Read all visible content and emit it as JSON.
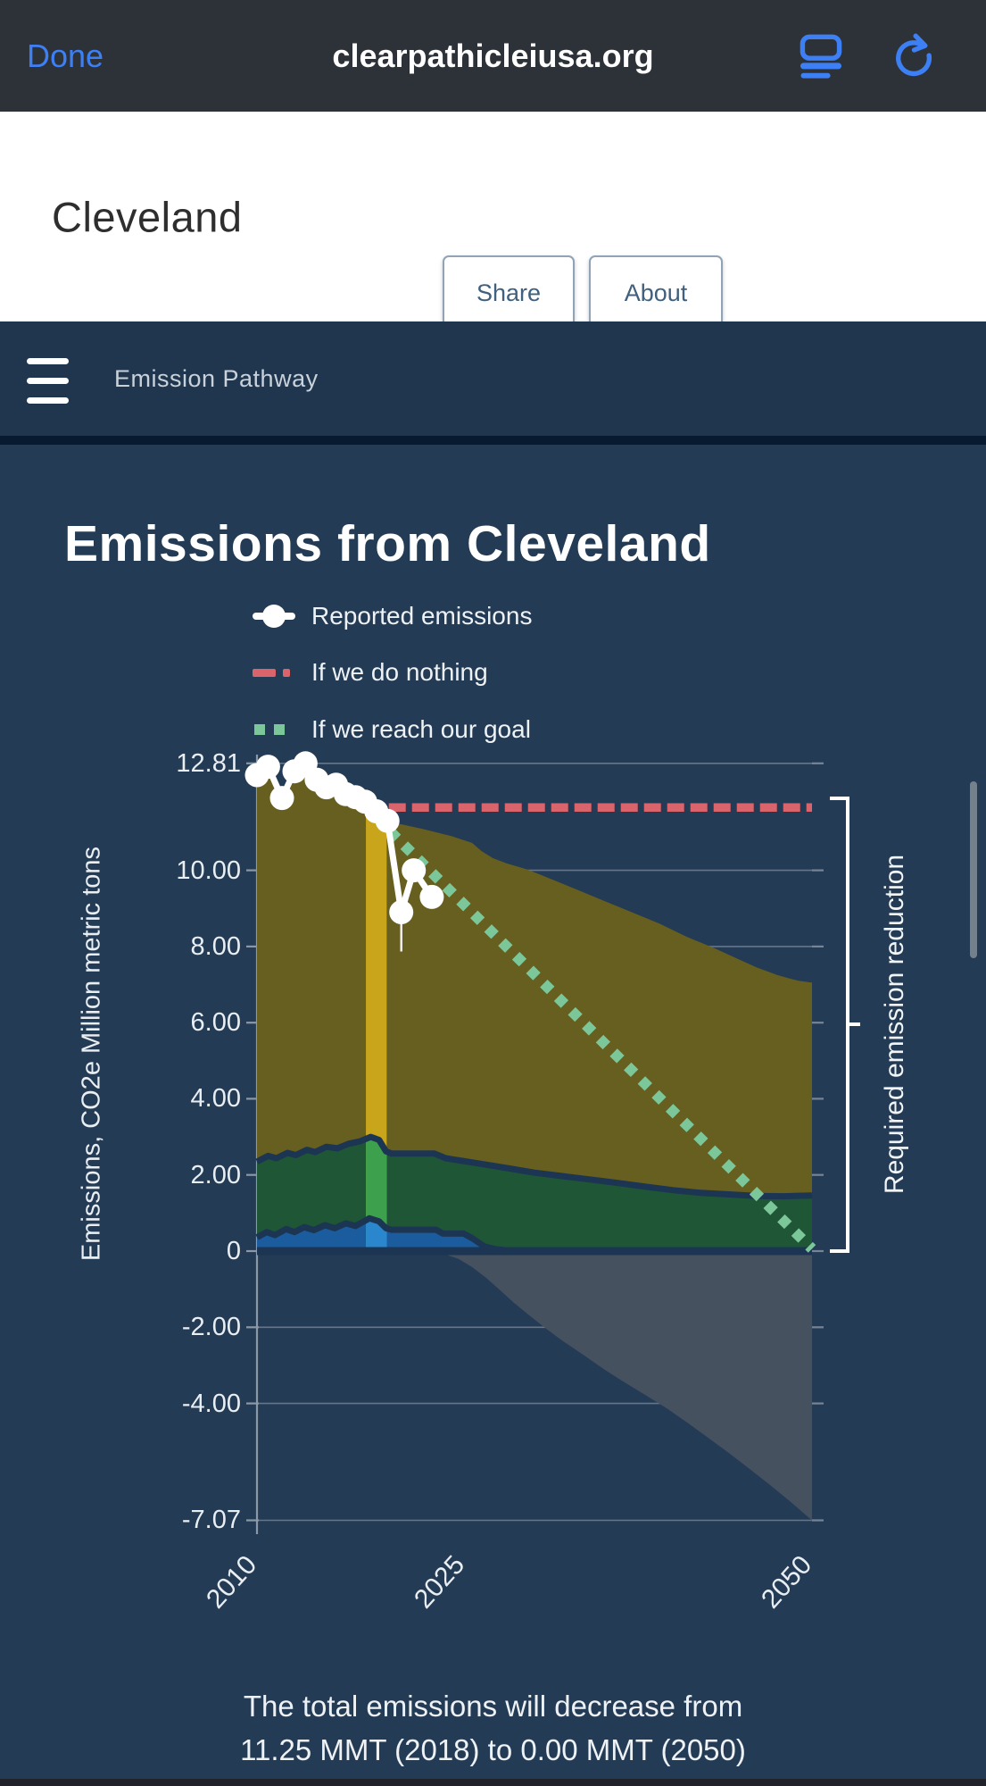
{
  "browser": {
    "done_label": "Done",
    "url": "clearpathicleiusa.org"
  },
  "page_header": {
    "city": "Cleveland",
    "share_label": "Share",
    "about_label": "About"
  },
  "navbar": {
    "menu_label": "Emission Pathway"
  },
  "chart_header": {
    "title": "Emissions from Cleveland"
  },
  "legend": {
    "items": [
      {
        "label": "Reported emissions",
        "marker": "line-dot",
        "color": "#ffffff"
      },
      {
        "label": "If we do nothing",
        "marker": "dash",
        "color": "#d9646c"
      },
      {
        "label": "If we reach our goal",
        "marker": "squares",
        "color": "#7cc79a"
      }
    ]
  },
  "annotations": {
    "bracket_label": "Required emission reduction"
  },
  "footer": {
    "line1": "The total emissions will decrease from",
    "line2": "11.25 MMT (2018) to 0.00 MMT (2050)"
  },
  "chart_data": {
    "type": "area",
    "title": "Emissions from Cleveland",
    "ylabel": "Emissions, CO2e Million metric tons",
    "xlabel": "",
    "xlim": [
      2010,
      2050
    ],
    "ylim": [
      -7.07,
      12.81
    ],
    "grid": true,
    "legend_position": "top",
    "y_ticks": [
      {
        "label": "12.81",
        "value": 12.81
      },
      {
        "label": "10.00",
        "value": 10
      },
      {
        "label": "8.00",
        "value": 8
      },
      {
        "label": "6.00",
        "value": 6
      },
      {
        "label": "4.00",
        "value": 4
      },
      {
        "label": "2.00",
        "value": 2
      },
      {
        "label": "0",
        "value": 0
      },
      {
        "label": "-2.00",
        "value": -2
      },
      {
        "label": "-4.00",
        "value": -4
      },
      {
        "label": "-7.07",
        "value": -7.07
      }
    ],
    "x_ticks": [
      {
        "label": "2010",
        "value": 2010
      },
      {
        "label": "2025",
        "value": 2025
      },
      {
        "label": "2050",
        "value": 2050
      }
    ],
    "highlight_band": {
      "from": 2017.85,
      "to": 2019.35
    },
    "colors": {
      "background": "#243b55",
      "wedge_upper": "#675f1f",
      "wedge_upper_highlight": "#c9a51c",
      "wedge_mid": "#1f5636",
      "wedge_mid_highlight": "#3da04c",
      "wedge_lower": "#1b5c9e",
      "wedge_lower_highlight": "#2b87cd",
      "negative_area": "#46515f",
      "boundary": "#1c3553",
      "do_nothing": "#d9646c",
      "goal": "#7cc79a",
      "reported": "#ffffff",
      "gridline": "#7b8a9c",
      "axis": "#8b98a6",
      "bracket": "#ffffff"
    },
    "series": [
      {
        "name": "Reported emissions",
        "type": "line-markers",
        "color": "#ffffff",
        "points": [
          [
            2010,
            12.5
          ],
          [
            2010.8,
            12.72
          ],
          [
            2011.8,
            11.9
          ],
          [
            2012.7,
            12.6
          ],
          [
            2013.5,
            12.81
          ],
          [
            2014.3,
            12.38
          ],
          [
            2015,
            12.18
          ],
          [
            2015.7,
            12.25
          ],
          [
            2016.4,
            12.0
          ],
          [
            2017.1,
            11.92
          ],
          [
            2017.8,
            11.8
          ],
          [
            2018.6,
            11.55
          ],
          [
            2019.4,
            11.3
          ],
          [
            2020.4,
            8.9
          ],
          [
            2021.3,
            10.0
          ],
          [
            2022.6,
            9.3
          ]
        ]
      },
      {
        "name": "If we do nothing",
        "type": "dashed-line",
        "color": "#d9646c",
        "points": [
          [
            2019.5,
            11.65
          ],
          [
            2050,
            11.65
          ]
        ]
      },
      {
        "name": "If we reach our goal",
        "type": "dotted-line",
        "color": "#7cc79a",
        "points": [
          [
            2019.6,
            11.02
          ],
          [
            2050,
            0.06
          ]
        ]
      },
      {
        "name": "wedge-upper",
        "type": "area",
        "color": "#675f1f",
        "points": [
          [
            2010,
            12.32
          ],
          [
            2010.8,
            12.55
          ],
          [
            2011.8,
            11.78
          ],
          [
            2012.7,
            12.42
          ],
          [
            2013.5,
            12.65
          ],
          [
            2014.3,
            12.25
          ],
          [
            2015,
            12.05
          ],
          [
            2015.7,
            12.1
          ],
          [
            2016.4,
            11.87
          ],
          [
            2017.1,
            11.78
          ],
          [
            2017.8,
            11.66
          ],
          [
            2018.6,
            11.42
          ],
          [
            2019.4,
            11.28
          ],
          [
            2020.5,
            11.2
          ],
          [
            2022,
            11.08
          ],
          [
            2024,
            10.9
          ],
          [
            2025.5,
            10.72
          ],
          [
            2026.2,
            10.5
          ],
          [
            2027,
            10.32
          ],
          [
            2028,
            10.18
          ],
          [
            2029.5,
            10.02
          ],
          [
            2031,
            9.8
          ],
          [
            2033,
            9.5
          ],
          [
            2035,
            9.2
          ],
          [
            2037,
            8.9
          ],
          [
            2039,
            8.6
          ],
          [
            2041,
            8.25
          ],
          [
            2043,
            7.95
          ],
          [
            2044.5,
            7.7
          ],
          [
            2046,
            7.45
          ],
          [
            2047.5,
            7.25
          ],
          [
            2049,
            7.1
          ],
          [
            2050,
            7.05
          ]
        ]
      },
      {
        "name": "wedge-mid",
        "type": "area",
        "color": "#1f5636",
        "points": [
          [
            2010,
            2.35
          ],
          [
            2010.8,
            2.5
          ],
          [
            2011.4,
            2.44
          ],
          [
            2012.2,
            2.58
          ],
          [
            2012.8,
            2.52
          ],
          [
            2013.6,
            2.66
          ],
          [
            2014.2,
            2.6
          ],
          [
            2015,
            2.74
          ],
          [
            2015.8,
            2.7
          ],
          [
            2016.6,
            2.82
          ],
          [
            2017.4,
            2.88
          ],
          [
            2018.2,
            3.0
          ],
          [
            2018.8,
            2.92
          ],
          [
            2019.3,
            2.62
          ],
          [
            2019.7,
            2.56
          ],
          [
            2022.8,
            2.56
          ],
          [
            2023.6,
            2.44
          ],
          [
            2024.6,
            2.38
          ],
          [
            2026,
            2.3
          ],
          [
            2028,
            2.18
          ],
          [
            2030,
            2.06
          ],
          [
            2032,
            1.97
          ],
          [
            2034,
            1.88
          ],
          [
            2036,
            1.79
          ],
          [
            2038,
            1.69
          ],
          [
            2040,
            1.6
          ],
          [
            2042,
            1.53
          ],
          [
            2044,
            1.49
          ],
          [
            2046,
            1.45
          ],
          [
            2048,
            1.44
          ],
          [
            2050,
            1.46
          ]
        ]
      },
      {
        "name": "wedge-lower",
        "type": "area",
        "color": "#1b5c9e",
        "points": [
          [
            2010,
            0.36
          ],
          [
            2010.7,
            0.5
          ],
          [
            2011.3,
            0.42
          ],
          [
            2012.1,
            0.58
          ],
          [
            2012.7,
            0.5
          ],
          [
            2013.4,
            0.63
          ],
          [
            2014.1,
            0.55
          ],
          [
            2014.9,
            0.68
          ],
          [
            2015.6,
            0.6
          ],
          [
            2016.4,
            0.73
          ],
          [
            2017.1,
            0.66
          ],
          [
            2018.1,
            0.86
          ],
          [
            2018.8,
            0.78
          ],
          [
            2019.3,
            0.6
          ],
          [
            2019.7,
            0.56
          ],
          [
            2022.9,
            0.56
          ],
          [
            2023.4,
            0.46
          ],
          [
            2024.9,
            0.46
          ],
          [
            2025.5,
            0.34
          ],
          [
            2026.4,
            0.12
          ],
          [
            2027.2,
            0.05
          ],
          [
            2028,
            0.02
          ]
        ]
      },
      {
        "name": "negative-sequestration",
        "type": "area-below-zero",
        "color": "#46515f",
        "points": [
          [
            2022.5,
            0
          ],
          [
            2023.5,
            -0.08
          ],
          [
            2024.5,
            -0.2
          ],
          [
            2025.5,
            -0.42
          ],
          [
            2026.5,
            -0.7
          ],
          [
            2027.5,
            -1.02
          ],
          [
            2028.5,
            -1.35
          ],
          [
            2029.5,
            -1.65
          ],
          [
            2030.7,
            -2.0
          ],
          [
            2032,
            -2.35
          ],
          [
            2033.5,
            -2.72
          ],
          [
            2035,
            -3.1
          ],
          [
            2036.5,
            -3.45
          ],
          [
            2038,
            -3.78
          ],
          [
            2039.5,
            -4.12
          ],
          [
            2041,
            -4.5
          ],
          [
            2042.5,
            -4.9
          ],
          [
            2044,
            -5.3
          ],
          [
            2045.5,
            -5.72
          ],
          [
            2047,
            -6.15
          ],
          [
            2048.5,
            -6.6
          ],
          [
            2050,
            -7.07
          ]
        ]
      }
    ]
  }
}
